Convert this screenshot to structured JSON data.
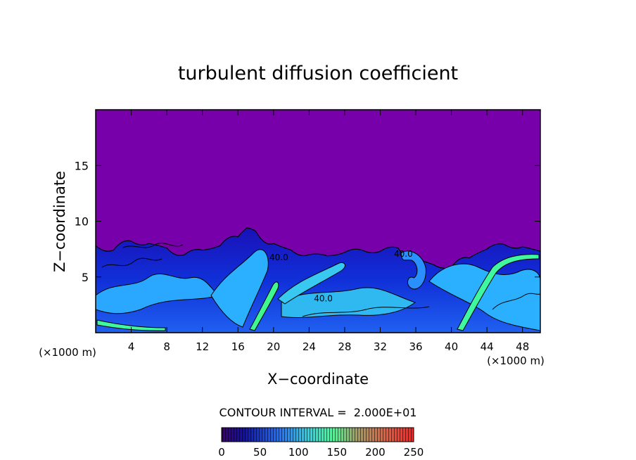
{
  "chart_data": {
    "type": "heatmap",
    "title": "turbulent diffusion coefficient",
    "xlabel": "X−coordinate",
    "ylabel": "Z−coordinate",
    "x_unit_left": "(×1000 m)",
    "x_unit_right": "(×1000 m)",
    "xlim": [
      0,
      50
    ],
    "ylim": [
      0,
      20
    ],
    "x_ticks": [
      4,
      8,
      12,
      16,
      20,
      24,
      28,
      32,
      36,
      40,
      44,
      48
    ],
    "x_tick_labels": [
      "4",
      "8",
      "12",
      "16",
      "20",
      "24",
      "28",
      "32",
      "36",
      "40",
      "44",
      "48"
    ],
    "y_ticks": [
      5,
      10,
      15
    ],
    "y_tick_labels": [
      "5",
      "10",
      "15"
    ],
    "turbulent_layer_top": [
      [
        0,
        7.8
      ],
      [
        2,
        7.4
      ],
      [
        4,
        8.2
      ],
      [
        6,
        8.0
      ],
      [
        8,
        7.6
      ],
      [
        10,
        7.0
      ],
      [
        12,
        7.4
      ],
      [
        14,
        7.8
      ],
      [
        16,
        8.6
      ],
      [
        17,
        9.4
      ],
      [
        18,
        9.1
      ],
      [
        20,
        8.0
      ],
      [
        22,
        7.4
      ],
      [
        24,
        7.0
      ],
      [
        26,
        6.9
      ],
      [
        28,
        7.2
      ],
      [
        30,
        7.4
      ],
      [
        32,
        7.3
      ],
      [
        34,
        7.6
      ],
      [
        36,
        6.7
      ],
      [
        38,
        6.1
      ],
      [
        40,
        5.9
      ],
      [
        42,
        6.7
      ],
      [
        44,
        7.5
      ],
      [
        46,
        7.9
      ],
      [
        48,
        7.7
      ],
      [
        50,
        7.3
      ]
    ],
    "contour_labels": [
      {
        "text": "40.0",
        "x": 20.6,
        "y": 6.5
      },
      {
        "text": "40.0",
        "x": 34.6,
        "y": 6.8
      },
      {
        "text": "40.0",
        "x": 25.6,
        "y": 2.8
      }
    ],
    "annotation": "CONTOUR INTERVAL =  2.000E+01",
    "colorbar": {
      "min": 0,
      "max": 250,
      "ticks": [
        0,
        50,
        100,
        150,
        200,
        250
      ],
      "tick_labels": [
        "0",
        "50",
        "100",
        "150",
        "200",
        "250"
      ],
      "colors": [
        "#7800aa",
        "#1020d0",
        "#30a0ff",
        "#40ffa0",
        "#c0a040",
        "#ff2010"
      ]
    },
    "background_color": "#7800aa"
  }
}
